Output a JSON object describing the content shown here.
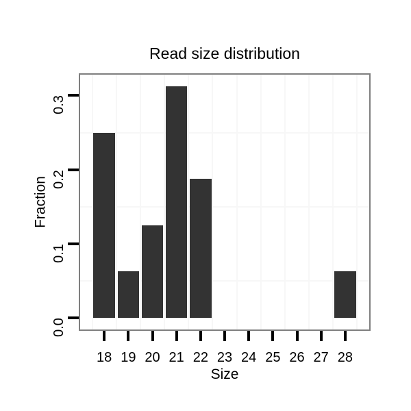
{
  "chart_data": {
    "type": "bar",
    "title": "Read size distribution",
    "xlabel": "Size",
    "ylabel": "Fraction",
    "categories": [
      18,
      19,
      20,
      21,
      22,
      23,
      24,
      25,
      26,
      27,
      28
    ],
    "values": [
      0.25,
      0.0625,
      0.125,
      0.3125,
      0.1875,
      0,
      0,
      0,
      0,
      0,
      0.0625
    ],
    "bar_width": 0.9,
    "xlim": [
      17,
      29
    ],
    "ylim": [
      -0.0156,
      0.3281
    ],
    "x_ticks": [
      {
        "v": 18,
        "label": "18"
      },
      {
        "v": 19,
        "label": "19"
      },
      {
        "v": 20,
        "label": "20"
      },
      {
        "v": 21,
        "label": "21"
      },
      {
        "v": 22,
        "label": "22"
      },
      {
        "v": 23,
        "label": "23"
      },
      {
        "v": 24,
        "label": "24"
      },
      {
        "v": 25,
        "label": "25"
      },
      {
        "v": 26,
        "label": "26"
      },
      {
        "v": 27,
        "label": "27"
      },
      {
        "v": 28,
        "label": "28"
      }
    ],
    "y_ticks": [
      {
        "v": 0.0,
        "label": "0.0"
      },
      {
        "v": 0.1,
        "label": "0.1"
      },
      {
        "v": 0.2,
        "label": "0.2"
      },
      {
        "v": 0.3,
        "label": "0.3"
      }
    ],
    "x_minor_gridlines": [
      17.5,
      18.5,
      19.5,
      20.5,
      21.5,
      22.5,
      23.5,
      24.5,
      25.5,
      26.5,
      27.5,
      28.5
    ],
    "y_minor_gridlines": [
      0.05,
      0.15,
      0.25
    ],
    "grid": "minor-only",
    "legend": "none",
    "colors": {
      "bar": "#333333",
      "panel_border": "#7f7f7f",
      "gridline": "#f7f7f7",
      "tick": "#000000",
      "text": "#000000",
      "background": "#ffffff"
    }
  }
}
